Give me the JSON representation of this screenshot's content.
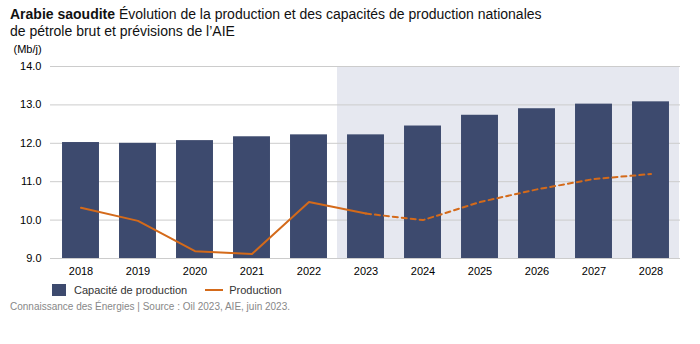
{
  "chart_data": {
    "type": "bar",
    "title": "Arabie saoudite",
    "subtitle": "Évolution de la production et des capacités de production nationales\nde pétrole brut et prévisions de l’AIE",
    "ylabel": "(Mb/j)",
    "categories": [
      2018,
      2019,
      2020,
      2021,
      2022,
      2023,
      2024,
      2025,
      2026,
      2027,
      2028
    ],
    "series": [
      {
        "name": "Capacité de production",
        "type": "bar",
        "color": "#3d4a6e",
        "values": [
          12.02,
          12.0,
          12.07,
          12.17,
          12.22,
          12.22,
          12.45,
          12.73,
          12.9,
          13.02,
          13.08
        ]
      },
      {
        "name": "Production",
        "type": "line",
        "color": "#d46a1a",
        "line_style": "solid",
        "values": [
          10.32,
          9.98,
          9.19,
          9.12,
          10.47,
          10.17,
          10.0,
          10.47,
          10.8,
          11.07,
          11.2
        ]
      }
    ],
    "forecast_start": 2023,
    "forecast_color": "#e6e8f0",
    "ylim": [
      9,
      14
    ],
    "yticks": [
      9,
      10,
      11,
      12,
      13,
      14
    ],
    "grid": true,
    "legend": "bottom",
    "caption": "Connaissance des Énergies | Source : Oil 2023, AIE, juin 2023."
  }
}
